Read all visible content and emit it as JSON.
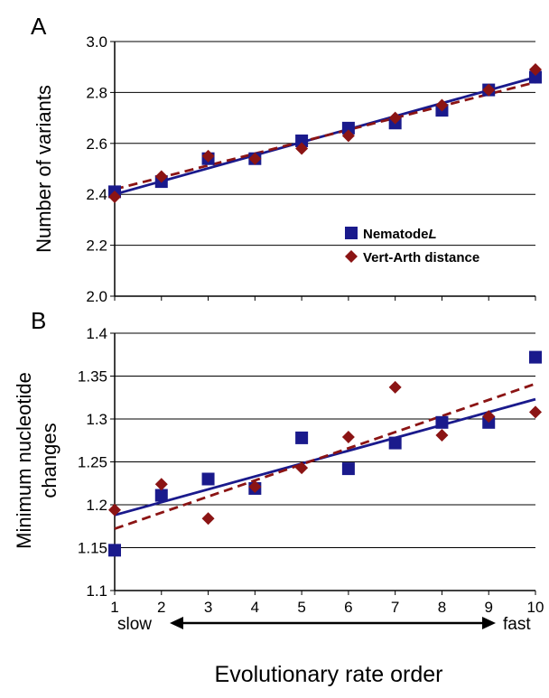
{
  "colors": {
    "series1": "#1a1a8c",
    "series2": "#8b1414",
    "grid": "#000000"
  },
  "chart_data": [
    {
      "panel": "A",
      "type": "scatter",
      "ylabel": "Number of variants",
      "ylim": [
        2.0,
        3.0
      ],
      "yticks": [
        "2.0",
        "2.2",
        "2.4",
        "2.6",
        "2.8",
        "3.0"
      ],
      "x": [
        1,
        2,
        3,
        4,
        5,
        6,
        7,
        8,
        9,
        10
      ],
      "grid": true,
      "legend_position": "bottom-right",
      "series": [
        {
          "name": "Nematode",
          "name_italic_suffix": "L",
          "marker": "square",
          "trendline": "solid",
          "values": [
            2.41,
            2.45,
            2.54,
            2.54,
            2.61,
            2.66,
            2.68,
            2.73,
            2.81,
            2.86
          ],
          "fit": [
            2.4,
            2.86
          ]
        },
        {
          "name": "Vert-Arth distance",
          "marker": "diamond",
          "trendline": "dashed",
          "values": [
            2.39,
            2.47,
            2.55,
            2.54,
            2.58,
            2.63,
            2.7,
            2.75,
            2.81,
            2.89
          ],
          "fit": [
            2.42,
            2.84
          ]
        }
      ]
    },
    {
      "panel": "B",
      "type": "scatter",
      "ylabel_lines": [
        "Minimum nucleotide",
        "changes"
      ],
      "ylim": [
        1.1,
        1.4
      ],
      "yticks": [
        "1.1",
        "1.15",
        "1.2",
        "1.25",
        "1.3",
        "1.35",
        "1.4"
      ],
      "x": [
        1,
        2,
        3,
        4,
        5,
        6,
        7,
        8,
        9,
        10
      ],
      "xticks": [
        "1",
        "2",
        "3",
        "4",
        "5",
        "6",
        "7",
        "8",
        "9",
        "10"
      ],
      "grid": true,
      "series": [
        {
          "name": "Nematode",
          "marker": "square",
          "trendline": "solid",
          "values": [
            1.147,
            1.211,
            1.23,
            1.219,
            1.278,
            1.242,
            1.272,
            1.296,
            1.296,
            1.372
          ],
          "fit": [
            1.188,
            1.323
          ]
        },
        {
          "name": "Vert-Arth distance",
          "marker": "diamond",
          "trendline": "dashed",
          "values": [
            1.194,
            1.224,
            1.184,
            1.221,
            1.243,
            1.279,
            1.337,
            1.281,
            1.303,
            1.308
          ],
          "fit": [
            1.172,
            1.341
          ]
        }
      ]
    }
  ],
  "xaxis": {
    "title": "Evolutionary rate order",
    "slow_label": "slow",
    "fast_label": "fast"
  }
}
